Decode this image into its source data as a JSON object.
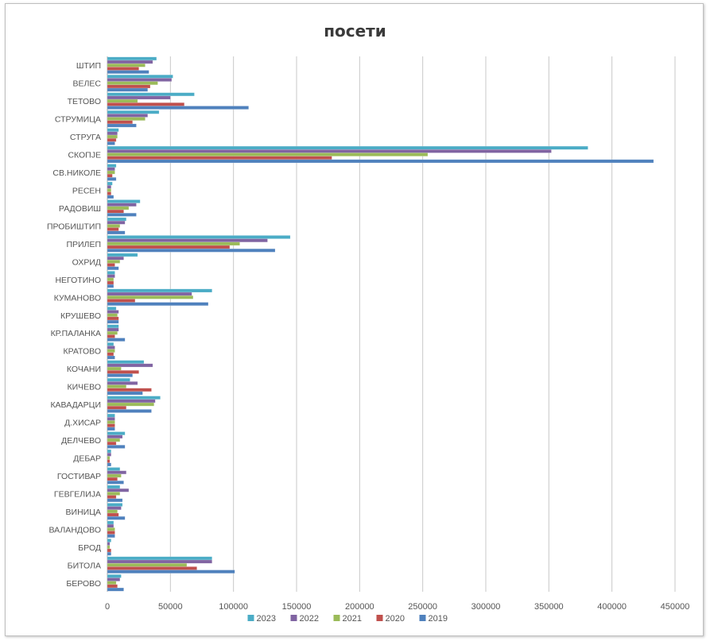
{
  "chart_data": {
    "type": "bar",
    "orientation": "horizontal",
    "title": "посети",
    "xlim": [
      0,
      450000
    ],
    "x_ticks": [
      0,
      50000,
      100000,
      150000,
      200000,
      250000,
      300000,
      350000,
      400000,
      450000
    ],
    "x_tick_labels": [
      "0",
      "50000",
      "100000",
      "150000",
      "200000",
      "250000",
      "300000",
      "350000",
      "400000",
      "450000"
    ],
    "grid": "vertical",
    "legend_position": "bottom",
    "categories": [
      "ШТИП",
      "ВЕЛЕС",
      "ТЕТОВО",
      "СТРУМИЦА",
      "СТРУГА",
      "СКОПЈЕ",
      "СВ.НИКОЛЕ",
      "РЕСЕН",
      "РАДОВИШ",
      "ПРОБИШТИП",
      "ПРИЛЕП",
      "ОХРИД",
      "НЕГОТИНО",
      "КУМАНОВО",
      "КРУШЕВО",
      "КР.ПАЛАНКА",
      "КРАТОВО",
      "КОЧАНИ",
      "КИЧЕВО",
      "КАВАДАРЦИ",
      "Д.ХИСАР",
      "ДЕЛЧЕВО",
      "ДЕБАР",
      "ГОСТИВАР",
      "ГЕВГЕЛИЈА",
      "ВИНИЦА",
      "ВАЛАНДОВО",
      "БРОД",
      "БИТОЛА",
      "БЕРОВО"
    ],
    "series": [
      {
        "name": "2023",
        "color": "#4bacc6",
        "values": [
          39000,
          52000,
          69000,
          41000,
          9000,
          381000,
          7000,
          4000,
          26000,
          15000,
          145000,
          24000,
          6000,
          83000,
          7000,
          9000,
          5000,
          29000,
          18000,
          42000,
          6000,
          14000,
          3000,
          10000,
          10000,
          12000,
          5000,
          3000,
          83000,
          11000
        ]
      },
      {
        "name": "2022",
        "color": "#8064a2",
        "values": [
          36000,
          51000,
          50000,
          32000,
          8000,
          352000,
          6000,
          3000,
          23000,
          14000,
          127000,
          13000,
          6000,
          67000,
          9000,
          9000,
          6000,
          36000,
          24000,
          38000,
          6000,
          12000,
          3000,
          15000,
          17000,
          11000,
          5000,
          2000,
          83000,
          10000
        ]
      },
      {
        "name": "2021",
        "color": "#9bbb59",
        "values": [
          30000,
          40000,
          24000,
          30000,
          8000,
          254000,
          6000,
          3000,
          17000,
          10000,
          105000,
          10000,
          5000,
          68000,
          8000,
          8000,
          6000,
          11000,
          15000,
          37000,
          6000,
          10000,
          2000,
          11000,
          10000,
          8000,
          6000,
          2000,
          63000,
          7000
        ]
      },
      {
        "name": "2020",
        "color": "#c0504d",
        "values": [
          25000,
          34000,
          61000,
          20000,
          7000,
          178000,
          4000,
          3000,
          13000,
          9000,
          97000,
          6000,
          5000,
          22000,
          9000,
          6000,
          5000,
          25000,
          35000,
          15000,
          6000,
          7000,
          2000,
          8000,
          7000,
          9000,
          6000,
          3000,
          71000,
          8000
        ]
      },
      {
        "name": "2019",
        "color": "#4f81bd",
        "values": [
          33000,
          32000,
          112000,
          23000,
          6000,
          433000,
          7000,
          5000,
          23000,
          14000,
          133000,
          9000,
          5000,
          80000,
          9000,
          14000,
          6000,
          20000,
          28000,
          35000,
          6000,
          14000,
          3000,
          13000,
          12000,
          14000,
          6000,
          3000,
          101000,
          13000
        ]
      }
    ],
    "legend_order": [
      "2023",
      "2022",
      "2021",
      "2020",
      "2019"
    ]
  }
}
